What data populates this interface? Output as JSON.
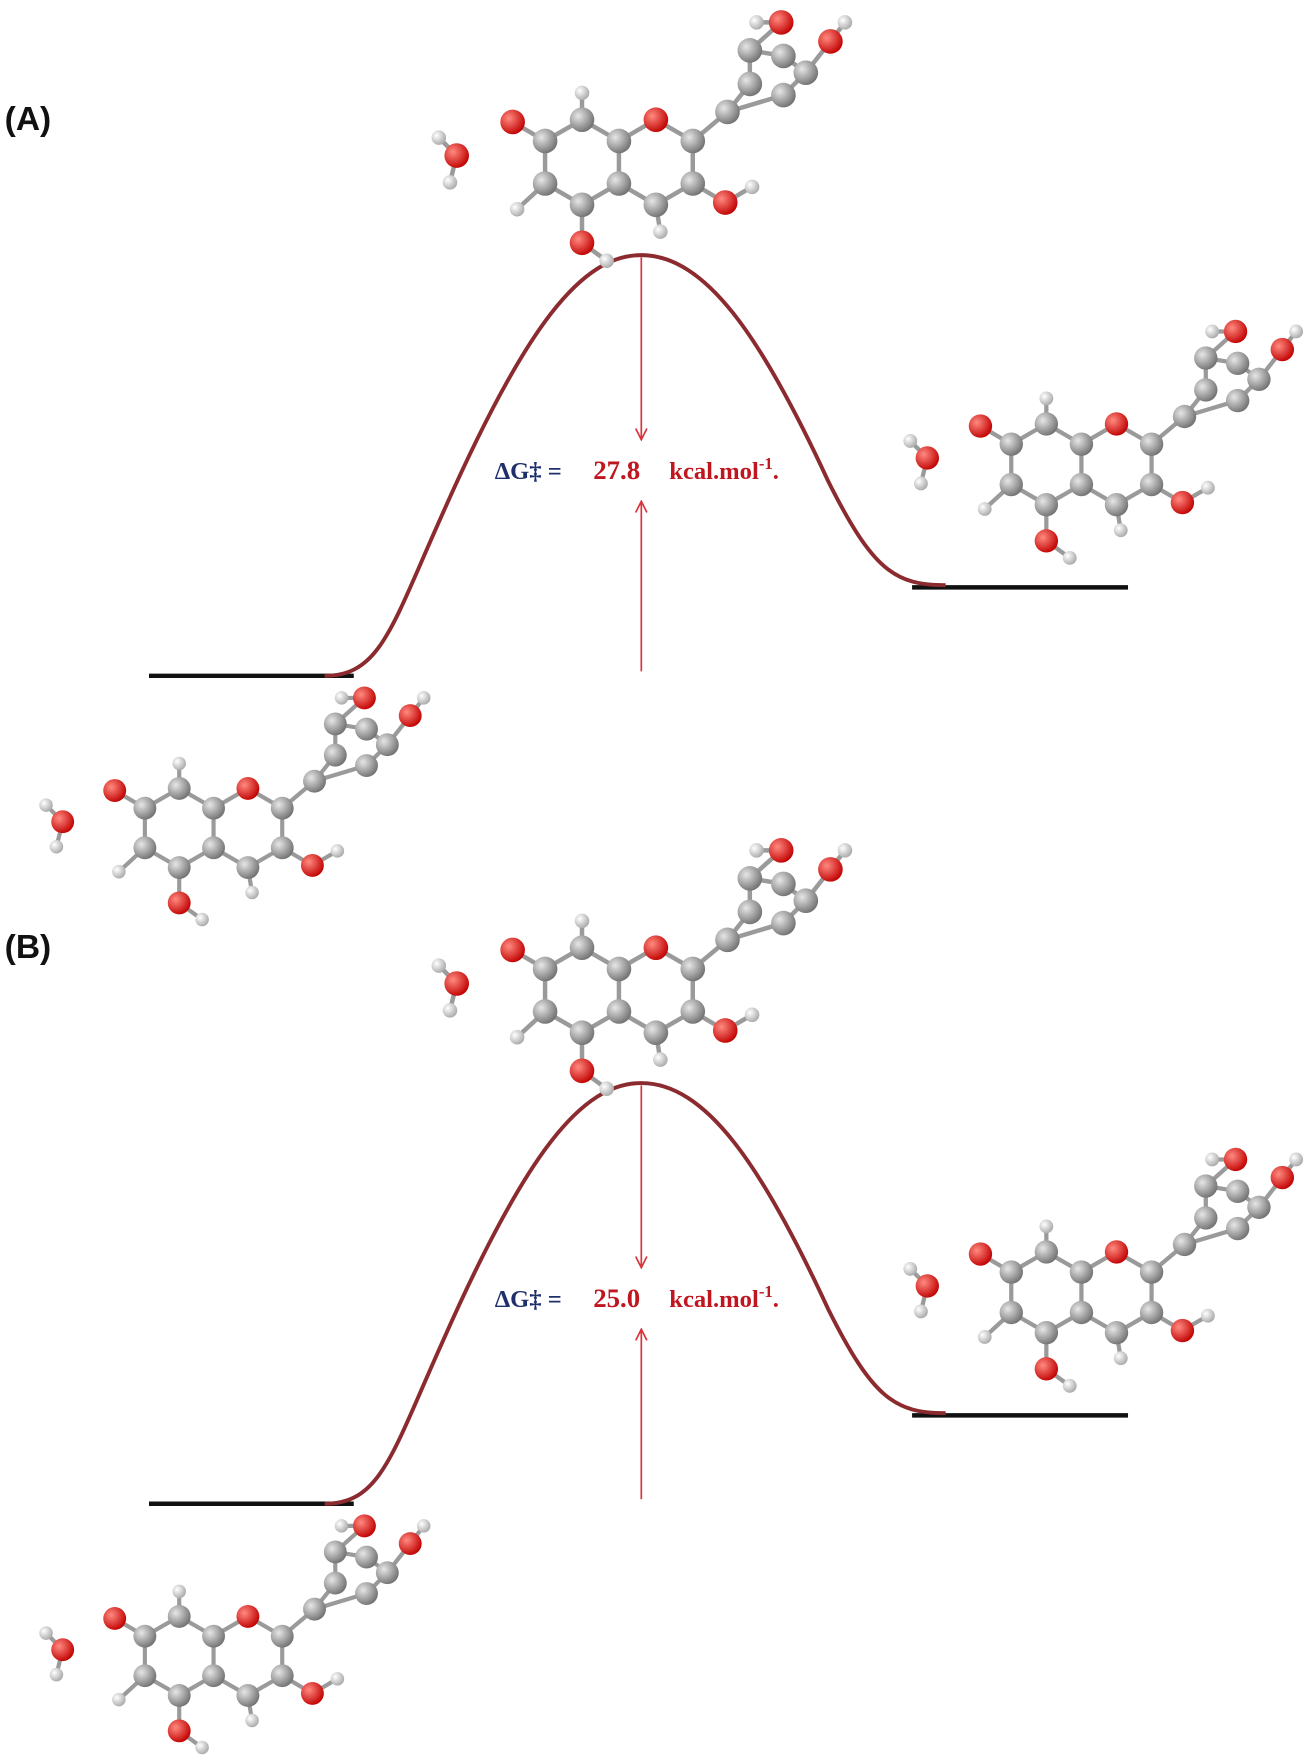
{
  "panels": [
    {
      "label": "(A)",
      "delta_g": "ΔG‡ =",
      "barrier": "27.8",
      "unit": "kcal.mol",
      "unit_sup": "-1",
      "unit_end": "."
    },
    {
      "label": "(B)",
      "delta_g": "ΔG‡ =",
      "barrier": "25.0",
      "unit": "kcal.mol",
      "unit_sup": "-1",
      "unit_end": "."
    }
  ]
}
